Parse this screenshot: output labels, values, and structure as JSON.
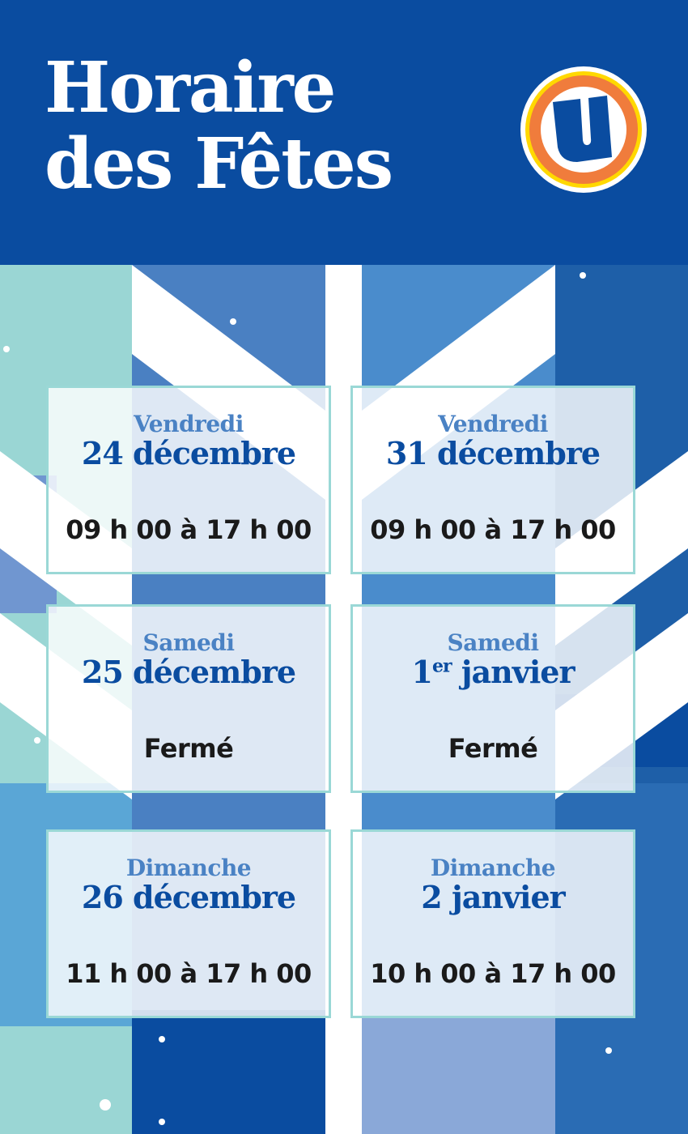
{
  "header": {
    "title_line1": "Horaire",
    "title_line2": "des Fêtes",
    "logo": "U-logo"
  },
  "colors": {
    "brand_blue": "#0a4ca0",
    "accent_blue": "#4a82c4",
    "teal": "#9ad8d6",
    "logo_orange": "#f07c3c",
    "logo_yellow": "#ffd800"
  },
  "schedule": [
    {
      "day": "Vendredi",
      "date": "24 décembre",
      "date_sup": "",
      "hours": "09 h 00 à 17 h 00"
    },
    {
      "day": "Vendredi",
      "date": "31 décembre",
      "date_sup": "",
      "hours": "09 h 00 à 17 h 00"
    },
    {
      "day": "Samedi",
      "date": "25 décembre",
      "date_sup": "",
      "hours": "Fermé"
    },
    {
      "day": "Samedi",
      "date_pre": "1",
      "date_sup": "er",
      "date": " janvier",
      "hours": "Fermé"
    },
    {
      "day": "Dimanche",
      "date": "26 décembre",
      "date_sup": "",
      "hours": "11 h 00 à 17 h 00"
    },
    {
      "day": "Dimanche",
      "date": "2 janvier",
      "date_sup": "",
      "hours": "10 h 00 à 17 h 00"
    }
  ]
}
